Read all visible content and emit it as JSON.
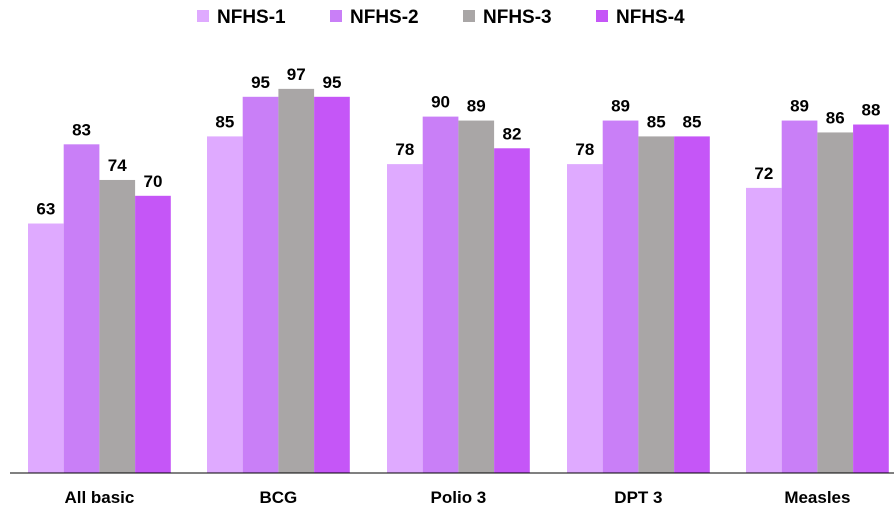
{
  "chart_data": {
    "type": "bar",
    "title": "",
    "xlabel": "",
    "ylabel": "",
    "categories": [
      "All basic",
      "BCG",
      "Polio 3",
      "DPT 3",
      "Measles"
    ],
    "series": [
      {
        "name": "NFHS-1",
        "values": [
          63,
          85,
          78,
          78,
          72
        ],
        "color": "#dfaaff"
      },
      {
        "name": "NFHS-2",
        "values": [
          83,
          95,
          90,
          89,
          89
        ],
        "color": "#c97ff7"
      },
      {
        "name": "NFHS-3",
        "values": [
          74,
          97,
          89,
          85,
          86
        ],
        "color": "#a9a6a6"
      },
      {
        "name": "NFHS-4",
        "values": [
          70,
          95,
          82,
          85,
          88
        ],
        "color": "#c556f7"
      }
    ],
    "ylim": [
      0,
      100
    ],
    "grid": false,
    "legend_position": "top-center",
    "data_labels": true
  }
}
